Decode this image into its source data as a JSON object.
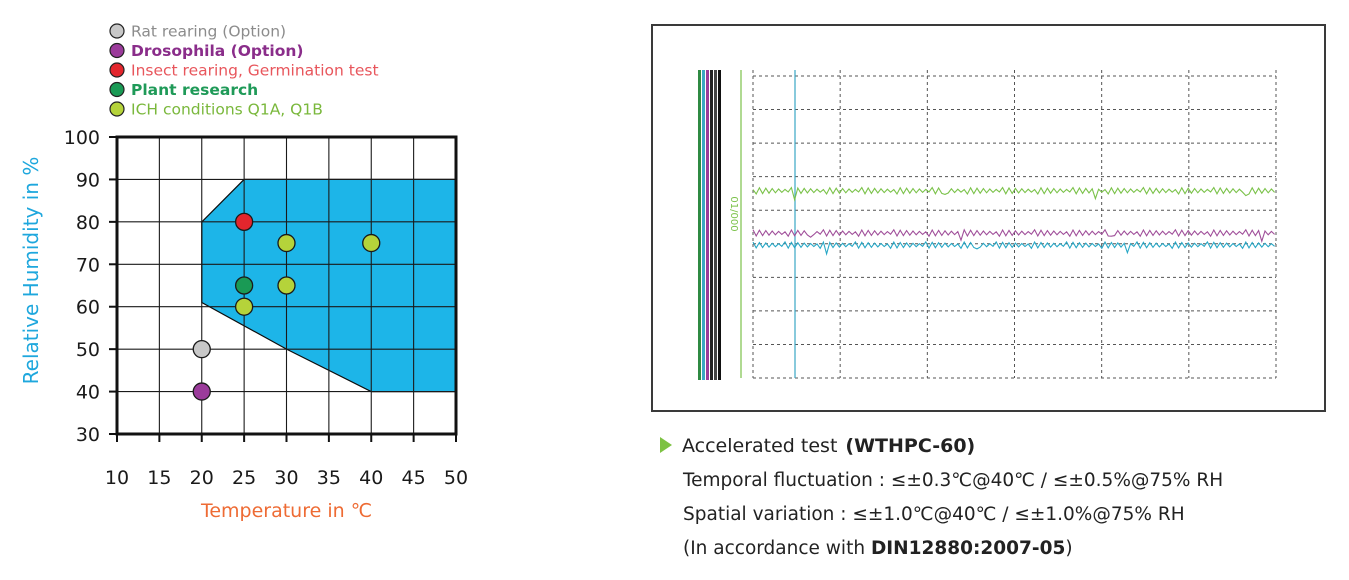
{
  "chart_data": [
    {
      "type": "scatter",
      "title": "",
      "xlabel": "Temperature in ℃",
      "ylabel": "Relative Humidity in %",
      "xlim": [
        10,
        50
      ],
      "ylim": [
        30,
        100
      ],
      "x_ticks": [
        "10",
        "15",
        "20",
        "25",
        "30",
        "35",
        "40",
        "45",
        "50"
      ],
      "y_ticks": [
        "30",
        "40",
        "50",
        "60",
        "70",
        "80",
        "90",
        "100"
      ],
      "grid": true,
      "legend_position": "top-left",
      "operating_range_polygon": [
        [
          20,
          80
        ],
        [
          25,
          90
        ],
        [
          50,
          90
        ],
        [
          50,
          40
        ],
        [
          40,
          40
        ],
        [
          30,
          50
        ],
        [
          20,
          61
        ]
      ],
      "legend": [
        {
          "label": "Rat rearing (Option)",
          "color": "#c8c8c8",
          "text_color": "#8c8c8c",
          "bold": false
        },
        {
          "label": "Drosophila (Option)",
          "color": "#9b3b9b",
          "text_color": "#8a2d8a",
          "bold": true
        },
        {
          "label": "Insect rearing, Germination test",
          "color": "#e3262d",
          "text_color": "#e8565c",
          "bold": false
        },
        {
          "label": "Plant research",
          "color": "#1a9a55",
          "text_color": "#1f9a58",
          "bold": true
        },
        {
          "label": "ICH conditions Q1A, Q1B",
          "color": "#b5d33a",
          "text_color": "#7ab83c",
          "bold": false
        }
      ],
      "series": [
        {
          "name": "Rat rearing (Option)",
          "points": [
            [
              20,
              50
            ]
          ]
        },
        {
          "name": "Drosophila (Option)",
          "points": [
            [
              20,
              40
            ]
          ]
        },
        {
          "name": "Insect rearing, Germination test",
          "points": [
            [
              25,
              80
            ]
          ]
        },
        {
          "name": "Plant research",
          "points": [
            [
              25,
              65
            ]
          ]
        },
        {
          "name": "ICH conditions Q1A, Q1B",
          "points": [
            [
              30,
              75
            ],
            [
              40,
              75
            ],
            [
              30,
              65
            ],
            [
              25,
              60
            ]
          ]
        }
      ],
      "colors": {
        "region": "#1db5e8",
        "axis": "#111111",
        "ylabel": "#1ea7dd",
        "xlabel": "#ee6b34"
      }
    },
    {
      "type": "line",
      "title": "",
      "grid": true,
      "gridlines": {
        "vertical": 6,
        "horizontal": 9
      },
      "scale_label": "01/000",
      "series": [
        {
          "color": "#7bc24a",
          "level": 0.38
        },
        {
          "color": "#a04f9a",
          "level": 0.52
        },
        {
          "color": "#27a7c6",
          "level": 0.56
        }
      ]
    }
  ],
  "caption": {
    "title": "Accelerated test",
    "model": "(WTHPC-60)",
    "temporal": "Temporal fluctuation : ≤±0.3℃@40℃ / ≤±0.5%@75% RH",
    "spatial": "Spatial variation : ≤±1.0℃@40℃ / ≤±1.0%@75% RH",
    "accord_prefix": "(In accordance with ",
    "accord_standard": "DIN12880:2007-05",
    "accord_suffix": ")"
  }
}
